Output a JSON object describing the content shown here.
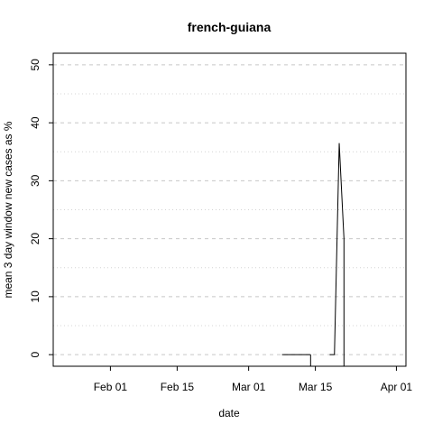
{
  "chart_data": {
    "type": "line",
    "title": "french-guiana",
    "xlabel": "date",
    "ylabel": "mean  3  day window new cases as %",
    "x_ticks": [
      "2020-02-01",
      "2020-02-15",
      "2020-03-01",
      "2020-03-15",
      "2020-04-01"
    ],
    "x_tick_labels": [
      "Feb 01",
      "Feb 15",
      "Mar 01",
      "Mar 15",
      "Apr 01"
    ],
    "y_ticks": [
      0,
      10,
      20,
      30,
      40,
      50
    ],
    "xlim": [
      "2020-01-20",
      "2020-04-03"
    ],
    "ylim": [
      -2,
      52
    ],
    "grid": "horizontal-dashed",
    "segments": [
      {
        "x": [
          "2020-01-20",
          "2020-01-20"
        ],
        "y": [
          52,
          52
        ]
      },
      {
        "x": [
          "2020-03-08",
          "2020-03-14"
        ],
        "y": [
          0,
          0
        ]
      },
      {
        "x": [
          "2020-03-14",
          "2020-03-14"
        ],
        "y": [
          0,
          -2
        ]
      },
      {
        "x": [
          "2020-03-18",
          "2020-03-19",
          "2020-03-20",
          "2020-03-21",
          "2020-03-21"
        ],
        "y": [
          0,
          0,
          36.5,
          20,
          -2
        ]
      }
    ]
  }
}
